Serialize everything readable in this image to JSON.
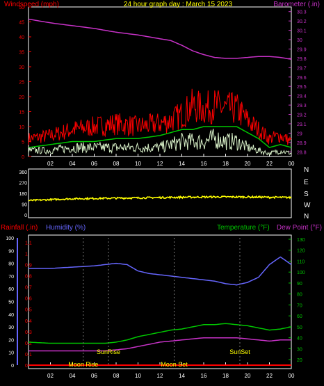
{
  "chart_data": [
    {
      "type": "line",
      "title": "24 hour graph day : March 15 2023",
      "left_axis_label": "Windspeed (mph)",
      "right_axis_label": "Barometer (.in)",
      "x_ticks": [
        "02",
        "04",
        "06",
        "08",
        "10",
        "12",
        "14",
        "16",
        "18",
        "20",
        "22",
        "00"
      ],
      "left_ticks": [
        0,
        5,
        10,
        15,
        20,
        25,
        30,
        35,
        40,
        45,
        50
      ],
      "right_ticks": [
        "28.8",
        "28.9",
        "29",
        "29.1",
        "29.2",
        "29.3",
        "29.4",
        "29.5",
        "29.6",
        "29.7",
        "29.8",
        "29.9",
        "30",
        "30.1",
        "30.2",
        "30.3"
      ],
      "ylim_left": [
        0,
        50
      ],
      "ylim_right": [
        28.75,
        30.35
      ],
      "series": [
        {
          "color": "#ff0000",
          "axis": "left",
          "style": "noisy",
          "hours": [
            0,
            2,
            4,
            6,
            8,
            10,
            12,
            13,
            14,
            15,
            16,
            17,
            18,
            19,
            20,
            21,
            22,
            23,
            24
          ],
          "values": [
            6,
            7,
            9,
            10,
            11,
            10,
            11,
            12,
            14,
            17,
            16,
            17,
            16,
            16,
            12,
            9,
            6,
            7,
            5
          ]
        },
        {
          "color": "#00c800",
          "axis": "left",
          "style": "smooth",
          "hours": [
            0,
            2,
            4,
            6,
            8,
            10,
            12,
            13,
            14,
            15,
            16,
            17,
            18,
            19,
            20,
            21,
            22,
            23,
            24
          ],
          "values": [
            3,
            4,
            5,
            5,
            6,
            6,
            7,
            8,
            9,
            9,
            10,
            10,
            10,
            10,
            8,
            6,
            3,
            4,
            3
          ]
        },
        {
          "color": "#d8f0c8",
          "axis": "left",
          "style": "noisy",
          "hours": [
            0,
            2,
            4,
            6,
            8,
            10,
            12,
            13,
            14,
            15,
            16,
            17,
            18,
            19,
            20,
            21,
            22,
            23,
            24
          ],
          "values": [
            2,
            2,
            3,
            3,
            3,
            3,
            3,
            4,
            5,
            5,
            5,
            6,
            5,
            5,
            3,
            2,
            1,
            2,
            1
          ]
        },
        {
          "color": "#c832c8",
          "axis": "right",
          "style": "smooth",
          "hours": [
            0,
            2,
            4,
            6,
            8,
            10,
            12,
            13,
            14,
            15,
            16,
            17,
            18,
            19,
            20,
            21,
            22,
            23,
            24
          ],
          "values": [
            30.22,
            30.18,
            30.15,
            30.12,
            30.08,
            30.05,
            30.01,
            29.99,
            29.94,
            29.88,
            29.84,
            29.81,
            29.8,
            29.8,
            29.81,
            29.82,
            29.82,
            29.81,
            29.79
          ]
        }
      ]
    },
    {
      "type": "line",
      "wind_direction_ticks": [
        0,
        90,
        180,
        270,
        360
      ],
      "compass_labels": [
        "N",
        "W",
        "S",
        "E",
        "N"
      ],
      "ylim": [
        0,
        360
      ],
      "series": [
        {
          "color": "#ffff00",
          "style": "noisy",
          "hours": [
            0,
            4,
            8,
            12,
            16,
            20,
            24
          ],
          "values": [
            120,
            135,
            140,
            145,
            150,
            150,
            145
          ]
        }
      ]
    },
    {
      "type": "line",
      "left_label_1": "Rainfall (.in)",
      "left_label_2": "Humidity (%)",
      "right_label_1": "Temperature (°F)",
      "right_label_2": "Dew Point (°F)",
      "rain_ticks": [
        "0",
        "0.1",
        "0.2",
        "0.3",
        "0.4",
        "0.5",
        "0.6",
        "0.7",
        "0.8",
        "0.9",
        "1",
        "1.1"
      ],
      "humidity_ticks": [
        0,
        10,
        20,
        30,
        40,
        50,
        60,
        70,
        80,
        90,
        100
      ],
      "temp_ticks": [
        20,
        30,
        40,
        50,
        60,
        70,
        80,
        90,
        100,
        110,
        120,
        130
      ],
      "x_ticks": [
        "02",
        "04",
        "06",
        "08",
        "10",
        "12",
        "14",
        "16",
        "18",
        "20",
        "22",
        "00"
      ],
      "events": [
        {
          "label": "Moon Rise",
          "hour": 5
        },
        {
          "label": "SunRise",
          "hour": 7.3
        },
        {
          "label": "Moon Set",
          "hour": 13.3
        },
        {
          "label": "SunSet",
          "hour": 19.3
        }
      ],
      "series": [
        {
          "color": "#6666ff",
          "axis": "humidity",
          "style": "smooth",
          "hours": [
            0,
            2,
            4,
            6,
            7,
            8,
            9,
            10,
            11,
            12,
            13,
            14,
            15,
            16,
            17,
            18,
            19,
            20,
            21,
            22,
            23,
            24
          ],
          "values": [
            76,
            76,
            77,
            78,
            79,
            80,
            79,
            74,
            72,
            71,
            70,
            69,
            68,
            67,
            66,
            64,
            63,
            65,
            69,
            79,
            85,
            79
          ]
        },
        {
          "color": "#00c800",
          "axis": "temp",
          "style": "smooth",
          "hours": [
            0,
            2,
            4,
            6,
            7,
            8,
            9,
            10,
            11,
            12,
            13,
            14,
            15,
            16,
            17,
            18,
            19,
            20,
            21,
            22,
            23,
            24
          ],
          "values": [
            36,
            35,
            35,
            35,
            35,
            36,
            38,
            41,
            43,
            45,
            47,
            48,
            50,
            52,
            52,
            53,
            52,
            51,
            49,
            47,
            48,
            50
          ]
        },
        {
          "color": "#c832c8",
          "axis": "temp",
          "style": "smooth",
          "hours": [
            0,
            2,
            4,
            6,
            7,
            8,
            9,
            10,
            11,
            12,
            13,
            14,
            15,
            16,
            17,
            18,
            19,
            20,
            21,
            22,
            23,
            24
          ],
          "values": [
            28,
            28,
            28,
            28,
            28,
            29,
            30,
            32,
            34,
            36,
            37,
            38,
            39,
            40,
            40,
            40,
            40,
            39,
            38,
            37,
            38,
            38
          ]
        },
        {
          "color": "#ff0000",
          "axis": "rain",
          "style": "smooth",
          "hours": [
            0,
            24
          ],
          "values": [
            0,
            0
          ]
        }
      ]
    }
  ]
}
